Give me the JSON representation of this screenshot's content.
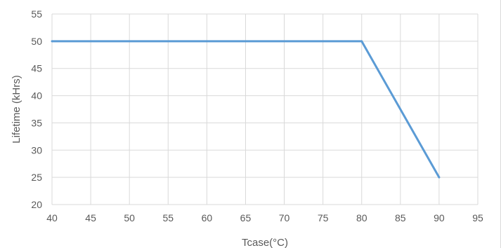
{
  "chart_data": {
    "type": "line",
    "title": "",
    "xlabel": "Tcase(°C)",
    "ylabel": "Lifetime (kHrs)",
    "xlim": [
      40,
      95
    ],
    "ylim": [
      20,
      55
    ],
    "x_ticks": [
      "40",
      "45",
      "50",
      "55",
      "60",
      "65",
      "70",
      "75",
      "80",
      "85",
      "90",
      "95"
    ],
    "y_ticks": [
      "20",
      "25",
      "30",
      "35",
      "40",
      "45",
      "50",
      "55"
    ],
    "grid": true,
    "legend": "none",
    "series": [
      {
        "color": "#5b9bd5",
        "x": [
          40,
          80,
          90
        ],
        "y": [
          50,
          50,
          25
        ]
      }
    ]
  }
}
